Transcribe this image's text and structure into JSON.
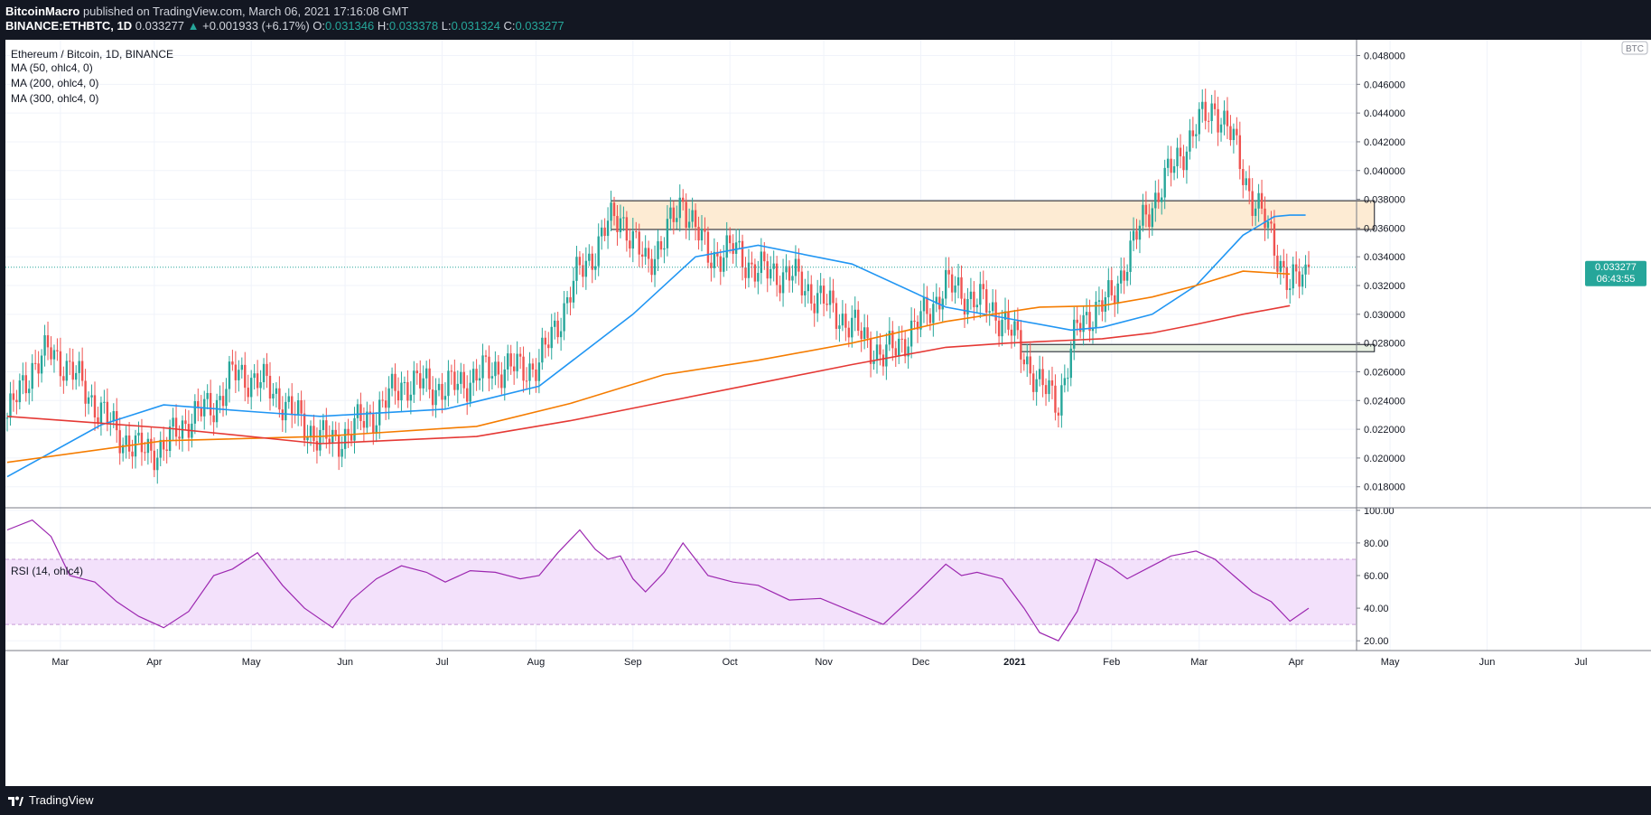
{
  "header": {
    "author": "BitcoinMacro",
    "published": " published on TradingView.com, March 06, 2021 17:16:08 GMT",
    "symbol": "BINANCE:ETHBTC, 1D",
    "price": "0.033277",
    "arrow": "▲",
    "change": "+0.001933 (+6.17%)",
    "o_label": "O:",
    "o": "0.031346",
    "h_label": "H:",
    "h": "0.033378",
    "l_label": "L:",
    "l": "0.031324",
    "c_label": "C:",
    "c": "0.033277"
  },
  "legend": {
    "title": "Ethereum / Bitcoin, 1D, BINANCE",
    "ma50": "MA (50, ohlc4, 0)",
    "ma200": "MA (200, ohlc4, 0)",
    "ma300": "MA (300, ohlc4, 0)",
    "rsi": "RSI (14, ohlc4)"
  },
  "currency_badge": "BTC",
  "price_tag": {
    "value": "0.033277",
    "countdown": "06:43:55"
  },
  "footer": {
    "brand": "TradingView"
  },
  "colors": {
    "up": "#26a69a",
    "down": "#ef5350",
    "ma50": "#2196f3",
    "ma200": "#f57c00",
    "ma300": "#e53935",
    "rsi": "#9c27b0",
    "zone_resistance": "#fdebd3",
    "zone_support": "#e8f0e2"
  },
  "chart_data": [
    {
      "type": "candlestick",
      "title": "Ethereum / Bitcoin, 1D, BINANCE",
      "x_tick_labels": [
        "Mar",
        "Apr",
        "May",
        "Jun",
        "Jul",
        "Aug",
        "Sep",
        "Oct",
        "Nov",
        "Dec",
        "2021",
        "Feb",
        "Mar",
        "Apr",
        "May",
        "Jun",
        "Jul"
      ],
      "y_tick_labels": [
        "0.048000",
        "0.046000",
        "0.044000",
        "0.042000",
        "0.040000",
        "0.038000",
        "0.036000",
        "0.034000",
        "0.032000",
        "0.030000",
        "0.028000",
        "0.026000",
        "0.024000",
        "0.022000",
        "0.020000",
        "0.018000"
      ],
      "ylim": [
        0.0166,
        0.0491
      ],
      "grid": true,
      "last_price": 0.033277,
      "price_points_x_days": [
        0,
        8,
        14,
        20,
        28,
        35,
        42,
        50,
        58,
        66,
        72,
        80,
        88,
        95,
        104,
        110,
        118,
        126,
        134,
        140,
        148,
        156,
        164,
        170,
        176,
        183,
        188,
        192,
        196,
        200,
        204,
        210,
        216,
        224,
        232,
        240,
        250,
        260,
        270,
        280,
        290,
        300,
        305,
        310,
        318,
        325,
        330,
        336,
        342,
        348,
        353,
        358,
        366,
        372,
        380,
        386,
        392,
        398,
        404,
        410,
        416
      ],
      "price_points_close": [
        0.0228,
        0.0264,
        0.0274,
        0.0262,
        0.0238,
        0.0218,
        0.0205,
        0.0207,
        0.0228,
        0.0236,
        0.0258,
        0.0255,
        0.024,
        0.0222,
        0.021,
        0.022,
        0.0232,
        0.0252,
        0.0251,
        0.0248,
        0.0255,
        0.0263,
        0.0262,
        0.0265,
        0.0295,
        0.033,
        0.0345,
        0.0362,
        0.037,
        0.035,
        0.0336,
        0.0352,
        0.038,
        0.034,
        0.0345,
        0.033,
        0.0328,
        0.031,
        0.0292,
        0.027,
        0.029,
        0.032,
        0.0315,
        0.031,
        0.0298,
        0.0272,
        0.025,
        0.024,
        0.029,
        0.0305,
        0.031,
        0.034,
        0.0378,
        0.04,
        0.043,
        0.0445,
        0.042,
        0.038,
        0.0355,
        0.0318,
        0.0332
      ],
      "series": [
        {
          "name": "MA (50, ohlc4, 0)",
          "x_days": [
            0,
            30,
            50,
            80,
            100,
            140,
            170,
            200,
            220,
            240,
            270,
            300,
            320,
            340,
            350,
            366,
            380,
            395,
            405,
            410,
            415
          ],
          "values": [
            0.0187,
            0.0223,
            0.0237,
            0.0232,
            0.0229,
            0.0234,
            0.025,
            0.03,
            0.034,
            0.0348,
            0.0335,
            0.0305,
            0.0297,
            0.0289,
            0.0291,
            0.03,
            0.032,
            0.0355,
            0.0368,
            0.0369,
            0.0369
          ]
        },
        {
          "name": "MA (200, ohlc4, 0)",
          "x_days": [
            0,
            50,
            100,
            150,
            180,
            210,
            240,
            270,
            300,
            330,
            350,
            366,
            380,
            395,
            410
          ],
          "values": [
            0.0197,
            0.0212,
            0.0215,
            0.0222,
            0.0238,
            0.0258,
            0.0268,
            0.028,
            0.0295,
            0.0305,
            0.0306,
            0.0312,
            0.032,
            0.033,
            0.0328
          ]
        },
        {
          "name": "MA (300, ohlc4, 0)",
          "x_days": [
            0,
            50,
            100,
            150,
            180,
            210,
            240,
            270,
            300,
            320,
            340,
            350,
            366,
            380,
            395,
            410
          ],
          "values": [
            0.0229,
            0.0221,
            0.021,
            0.0215,
            0.0226,
            0.0239,
            0.0252,
            0.0265,
            0.0277,
            0.028,
            0.0282,
            0.0283,
            0.0287,
            0.0293,
            0.03,
            0.0306
          ]
        }
      ],
      "zones": [
        {
          "name": "resistance",
          "x_days": [
            193,
            437
          ],
          "y": [
            0.0359,
            0.0379
          ]
        },
        {
          "name": "support",
          "x_days": [
            324,
            437
          ],
          "y": [
            0.0274,
            0.0279
          ]
        }
      ]
    },
    {
      "type": "line",
      "title": "RSI (14, ohlc4)",
      "ylim": [
        14,
        101
      ],
      "y_tick_labels": [
        "100.00",
        "80.00",
        "60.00",
        "40.00",
        "20.00"
      ],
      "band": [
        30,
        70
      ],
      "series": [
        {
          "name": "RSI (14, ohlc4)",
          "x_days": [
            0,
            8,
            14,
            20,
            28,
            35,
            42,
            50,
            58,
            66,
            72,
            80,
            88,
            95,
            104,
            110,
            118,
            126,
            134,
            140,
            148,
            156,
            164,
            170,
            176,
            183,
            188,
            192,
            196,
            200,
            204,
            210,
            216,
            224,
            232,
            240,
            250,
            260,
            270,
            280,
            290,
            300,
            305,
            310,
            318,
            325,
            330,
            336,
            342,
            348,
            353,
            358,
            366,
            372,
            380,
            386,
            392,
            398,
            404,
            410,
            416
          ],
          "values": [
            88,
            94,
            84,
            60,
            56,
            44,
            35,
            28,
            38,
            60,
            64,
            74,
            54,
            40,
            28,
            45,
            58,
            66,
            62,
            56,
            63,
            62,
            58,
            60,
            74,
            88,
            76,
            70,
            72,
            58,
            50,
            62,
            80,
            60,
            56,
            54,
            45,
            46,
            38,
            30,
            48,
            67,
            60,
            62,
            58,
            40,
            25,
            20,
            38,
            70,
            65,
            58,
            66,
            72,
            75,
            70,
            60,
            50,
            44,
            32,
            40
          ]
        }
      ]
    }
  ]
}
